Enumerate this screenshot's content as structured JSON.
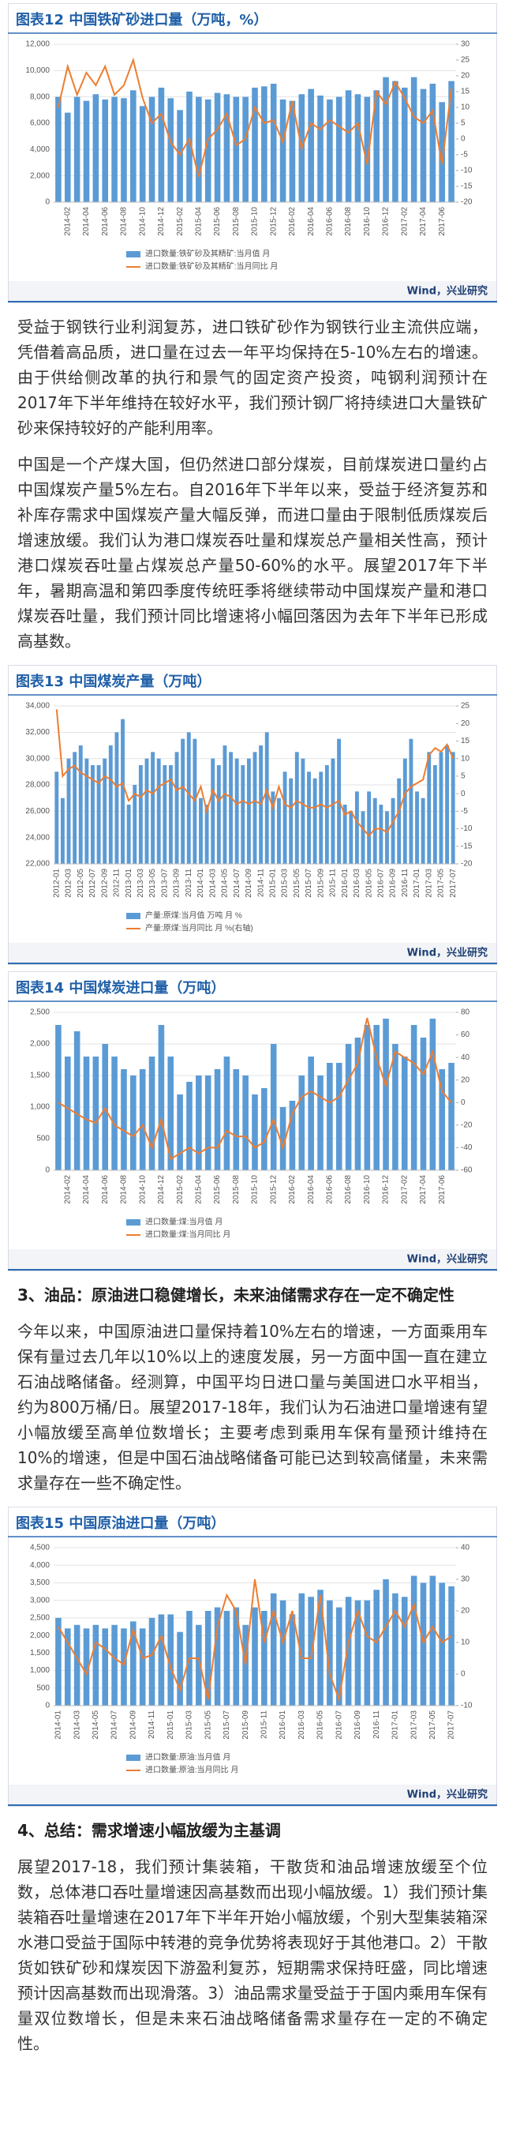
{
  "chart_data": [
    {
      "type": "bar",
      "title": "图表12  中国铁矿砂进口量（万吨，%）",
      "source": "Wind，兴业研究",
      "categories": [
        null,
        "2014-02",
        null,
        "2014-04",
        null,
        "2014-06",
        null,
        "2014-08",
        null,
        "2014-10",
        null,
        "2014-12",
        null,
        "2015-02",
        null,
        "2015-04",
        null,
        "2015-06",
        null,
        "2015-08",
        null,
        "2015-10",
        null,
        "2015-12",
        null,
        "2016-02",
        null,
        "2016-04",
        null,
        "2016-06",
        null,
        "2016-08",
        null,
        "2016-10",
        null,
        "2016-12",
        null,
        "2017-02",
        null,
        "2017-04",
        null,
        "2017-06",
        null
      ],
      "series": [
        {
          "name": "进口数量:铁矿砂及其精矿:当月值 月",
          "type": "bar",
          "color": "#5b9bd5",
          "values": [
            8000,
            6800,
            8000,
            7700,
            8200,
            7800,
            8000,
            7900,
            8500,
            7300,
            8000,
            8700,
            7900,
            7000,
            8400,
            8000,
            7800,
            8300,
            8200,
            8000,
            8000,
            8700,
            8800,
            9000,
            7800,
            7700,
            8200,
            8600,
            8100,
            7800,
            8000,
            8500,
            8200,
            8000,
            8500,
            9500,
            9200,
            8700,
            9500,
            8600,
            9000,
            7600,
            9200
          ]
        },
        {
          "name": "进口数量:铁矿砂及其精矿:当月同比 月",
          "type": "line",
          "axis": "y2",
          "color": "#ed7d31",
          "values": [
            10,
            23,
            14,
            21,
            17,
            23,
            14,
            17,
            25,
            13,
            5,
            8,
            -1,
            -5,
            0,
            -12,
            0,
            3,
            8,
            -2,
            0,
            10,
            5,
            6,
            -1,
            12,
            -3,
            5,
            3,
            6,
            4,
            2,
            5,
            -8,
            15,
            11,
            18,
            13,
            7,
            5,
            9,
            -8,
            16
          ]
        }
      ],
      "ylim": [
        0,
        12000
      ],
      "yticks": [
        0,
        {
          "value": 2000,
          "label": "2,000"
        },
        {
          "value": 4000,
          "label": "4,000"
        },
        {
          "value": 6000,
          "label": "6,000"
        },
        {
          "value": 8000,
          "label": "8,000"
        },
        {
          "value": 10000,
          "label": "10,000"
        },
        {
          "value": 12000,
          "label": "12,000"
        }
      ],
      "y2lim": [
        -20,
        30
      ],
      "y2ticks": [
        -20,
        -15,
        -10,
        -5,
        0,
        5,
        10,
        15,
        20,
        25,
        30
      ],
      "grid": true
    },
    {
      "type": "bar",
      "title": "图表13  中国煤炭产量（万吨）",
      "source": "Wind，兴业研究",
      "categories": [
        "2012-01",
        null,
        "2012-03",
        null,
        "2012-05",
        null,
        "2012-07",
        null,
        "2012-09",
        null,
        "2012-11",
        null,
        "2013-01",
        null,
        "2013-03",
        null,
        "2013-05",
        null,
        "2013-07",
        null,
        "2013-09",
        null,
        "2013-11",
        null,
        "2014-01",
        null,
        "2014-03",
        null,
        "2014-05",
        null,
        "2014-07",
        null,
        "2014-09",
        null,
        "2014-11",
        null,
        "2015-01",
        null,
        "2015-03",
        null,
        "2015-05",
        null,
        "2015-07",
        null,
        "2015-09",
        null,
        "2015-11",
        null,
        "2016-01",
        null,
        "2016-03",
        null,
        "2016-05",
        null,
        "2016-07",
        null,
        "2016-09",
        null,
        "2016-11",
        null,
        "2017-01",
        null,
        "2017-03",
        null,
        "2017-05",
        null,
        "2017-07"
      ],
      "series": [
        {
          "name": "产量:原煤:当月值 万吨 月 %",
          "type": "bar",
          "color": "#5b9bd5",
          "values": [
            29000,
            27000,
            30000,
            30500,
            31000,
            30000,
            29500,
            29500,
            30000,
            31000,
            32000,
            33000,
            26500,
            28000,
            29500,
            30000,
            30500,
            30000,
            29500,
            29500,
            30500,
            31500,
            32000,
            31500,
            27000,
            26500,
            30000,
            29500,
            31000,
            30500,
            30000,
            29500,
            30000,
            30500,
            31000,
            32000,
            27500,
            27000,
            29000,
            28500,
            30500,
            30000,
            29000,
            28500,
            29000,
            29500,
            30000,
            31500,
            26500,
            26000,
            27500,
            26000,
            27500,
            27000,
            26500,
            26000,
            27000,
            28500,
            30000,
            31500,
            27500,
            27000,
            30500,
            29500,
            30500,
            31000,
            30500
          ]
        },
        {
          "name": "产量:原煤:当月同比 月 %(右轴)",
          "type": "line",
          "axis": "y2",
          "color": "#ed7d31",
          "values": [
            24,
            5,
            7,
            8,
            6,
            5,
            4,
            3,
            5,
            4,
            2,
            3,
            -2,
            0,
            -1,
            1,
            0,
            2,
            3,
            4,
            1,
            2,
            0,
            -2,
            2,
            -5,
            1,
            -2,
            0,
            -1,
            -3,
            -2,
            -3,
            -2,
            -3,
            1,
            -4,
            2,
            -3,
            -4,
            -2,
            -3,
            -4,
            -4,
            -3,
            -4,
            -3,
            -2,
            -6,
            -5,
            -8,
            -10,
            -12,
            -10,
            -10,
            -11,
            -8,
            -5,
            0,
            2,
            3,
            4,
            11,
            13,
            12,
            14,
            10
          ]
        }
      ],
      "ylim": [
        22000,
        34000
      ],
      "yticks": [
        {
          "value": 22000,
          "label": "22,000"
        },
        {
          "value": 24000,
          "label": "24,000"
        },
        {
          "value": 26000,
          "label": "26,000"
        },
        {
          "value": 28000,
          "label": "28,000"
        },
        {
          "value": 30000,
          "label": "30,000"
        },
        {
          "value": 32000,
          "label": "32,000"
        },
        {
          "value": 34000,
          "label": "34,000"
        }
      ],
      "y2lim": [
        -20,
        25
      ],
      "y2ticks": [
        -20,
        -15,
        -10,
        -5,
        0,
        5,
        10,
        15,
        20,
        25
      ],
      "grid": true
    },
    {
      "type": "bar",
      "title": "图表14  中国煤炭进口量（万吨）",
      "source": "Wind，兴业研究",
      "categories": [
        null,
        "2014-02",
        null,
        "2014-04",
        null,
        "2014-06",
        null,
        "2014-08",
        null,
        "2014-10",
        null,
        "2014-12",
        null,
        "2015-02",
        null,
        "2015-04",
        null,
        "2015-06",
        null,
        "2015-08",
        null,
        "2015-10",
        null,
        "2015-12",
        null,
        "2016-02",
        null,
        "2016-04",
        null,
        "2016-06",
        null,
        "2016-08",
        null,
        "2016-10",
        null,
        "2016-12",
        null,
        "2017-02",
        null,
        "2017-04",
        null,
        "2017-06",
        null
      ],
      "series": [
        {
          "name": "进口数量:煤:当月值 月",
          "type": "bar",
          "color": "#5b9bd5",
          "values": [
            2300,
            1800,
            2200,
            1800,
            1800,
            2000,
            1800,
            1600,
            1500,
            1600,
            1800,
            2300,
            1800,
            1200,
            1400,
            1500,
            1500,
            1600,
            1800,
            1600,
            1500,
            1200,
            1300,
            2000,
            1000,
            1100,
            1500,
            1800,
            1500,
            1700,
            1700,
            2000,
            2100,
            2300,
            2300,
            2400,
            2000,
            1800,
            2300,
            2100,
            2400,
            1600,
            1700
          ]
        },
        {
          "name": "进口数量:煤:当月同比 月",
          "type": "line",
          "axis": "y2",
          "color": "#ed7d31",
          "values": [
            0,
            -5,
            -10,
            -15,
            -18,
            -5,
            -20,
            -25,
            -30,
            -20,
            -40,
            -15,
            -50,
            -45,
            -40,
            -45,
            -40,
            -40,
            -25,
            -30,
            -30,
            -40,
            -35,
            -15,
            -40,
            -10,
            5,
            10,
            5,
            0,
            5,
            20,
            35,
            75,
            40,
            15,
            45,
            40,
            35,
            25,
            45,
            10,
            0
          ]
        }
      ],
      "ylim": [
        0,
        2500
      ],
      "yticks": [
        0,
        500,
        {
          "value": 1000,
          "label": "1,000"
        },
        {
          "value": 1500,
          "label": "1,500"
        },
        {
          "value": 2000,
          "label": "2,000"
        },
        {
          "value": 2500,
          "label": "2,500"
        }
      ],
      "y2lim": [
        -60,
        80
      ],
      "y2ticks": [
        -60,
        -40,
        -20,
        0,
        20,
        40,
        60,
        80
      ],
      "grid": true
    },
    {
      "type": "bar",
      "title": "图表15  中国原油进口量（万吨）",
      "source": "Wind，兴业研究",
      "categories": [
        "2014-01",
        null,
        "2014-03",
        null,
        "2014-05",
        null,
        "2014-07",
        null,
        "2014-09",
        null,
        "2014-11",
        null,
        "2015-01",
        null,
        "2015-03",
        null,
        "2015-05",
        null,
        "2015-07",
        null,
        "2015-09",
        null,
        "2015-11",
        null,
        "2016-01",
        null,
        "2016-03",
        null,
        "2016-05",
        null,
        "2016-07",
        null,
        "2016-09",
        null,
        "2016-11",
        null,
        "2017-01",
        null,
        "2017-03",
        null,
        "2017-05",
        null,
        "2017-07"
      ],
      "series": [
        {
          "name": "进口数量:原油:当月值 月",
          "type": "bar",
          "color": "#5b9bd5",
          "values": [
            2500,
            2200,
            2300,
            2200,
            2300,
            2200,
            2300,
            2200,
            2400,
            2200,
            2500,
            2600,
            2600,
            2100,
            2700,
            2300,
            2700,
            2800,
            2700,
            2800,
            2300,
            2800,
            2700,
            3200,
            3000,
            2600,
            3200,
            3100,
            3300,
            3000,
            2800,
            3100,
            3000,
            3000,
            3300,
            3600,
            3200,
            3100,
            3700,
            3500,
            3700,
            3500,
            3400
          ]
        },
        {
          "name": "进口数量:原油:当月同比 月",
          "type": "line",
          "axis": "y2",
          "color": "#ed7d31",
          "values": [
            15,
            10,
            5,
            0,
            10,
            8,
            5,
            3,
            14,
            5,
            6,
            12,
            2,
            -5,
            5,
            5,
            -8,
            15,
            25,
            20,
            3,
            30,
            10,
            20,
            10,
            20,
            5,
            5,
            25,
            0,
            -8,
            10,
            20,
            12,
            10,
            15,
            20,
            15,
            22,
            10,
            15,
            10,
            12
          ]
        }
      ],
      "ylim": [
        0,
        4500
      ],
      "yticks": [
        0,
        500,
        {
          "value": 1000,
          "label": "1,000"
        },
        {
          "value": 1500,
          "label": "1,500"
        },
        {
          "value": 2000,
          "label": "2,000"
        },
        {
          "value": 2500,
          "label": "2,500"
        },
        {
          "value": 3000,
          "label": "3,000"
        },
        {
          "value": 3500,
          "label": "3,500"
        },
        {
          "value": 4000,
          "label": "4,000"
        },
        {
          "value": 4500,
          "label": "4,500"
        }
      ],
      "y2lim": [
        -10,
        40
      ],
      "y2ticks": [
        -10,
        0,
        10,
        20,
        30,
        40
      ],
      "grid": true
    }
  ],
  "paragraphs": [
    "受益于钢铁行业利润复苏，进口铁矿砂作为钢铁行业主流供应端，凭借着高品质，进口量在过去一年平均保持在5-10%左右的增速。由于供给侧改革的执行和景气的固定资产投资，吨钢利润预计在2017年下半年维持在较好水平，我们预计钢厂将持续进口大量铁矿砂来保持较好的产能利用率。",
    "中国是一个产煤大国，但仍然进口部分煤炭，目前煤炭进口量约占中国煤炭产量5%左右。自2016年下半年以来，受益于经济复苏和补库存需求中国煤炭产量大幅反弹，而进口量由于限制低质煤炭后增速放缓。我们认为港口煤炭吞吐量和煤炭总产量相关性高，预计港口煤炭吞吐量占煤炭总产量50-60%的水平。展望2017年下半年，暑期高温和第四季度传统旺季将继续带动中国煤炭产量和港口煤炭吞吐量，我们预计同比增速将小幅回落因为去年下半年已形成高基数。",
    "今年以来，中国原油进口量保持着10%左右的增速，一方面乘用车保有量过去几年以10%以上的速度发展，另一方面中国一直在建立石油战略储备。经测算，中国平均日进口量与美国进口水平相当，约为800万桶/日。展望2017-18年，我们认为石油进口量增速有望小幅放缓至高单位数增长；主要考虑到乘用车保有量预计维持在10%的增速，但是中国石油战略储备可能已达到较高储量，未来需求量存在一些不确定性。",
    "展望2017-18，我们预计集装箱，干散货和油品增速放缓至个位数，总体港口吞吐量增速因高基数而出现小幅放缓。1）我们预计集装箱吞吐量增速在2017年下半年开始小幅放缓，个别大型集装箱深水港口受益于国际中转港的竞争优势将表现好于其他港口。2）干散货如铁矿砂和煤炭因下游盈利复苏，短期需求保持旺盛，同比增速预计因高基数而出现滑落。3）油品需求量受益于于国内乘用车保有量双位数增长，但是未来石油战略储备需求量存在一定的不确定性。"
  ],
  "headings": [
    "3、油品：原油进口稳健增长，未来油储需求存在一定不确定性",
    "4、总结：需求增速小幅放缓为主基调"
  ]
}
